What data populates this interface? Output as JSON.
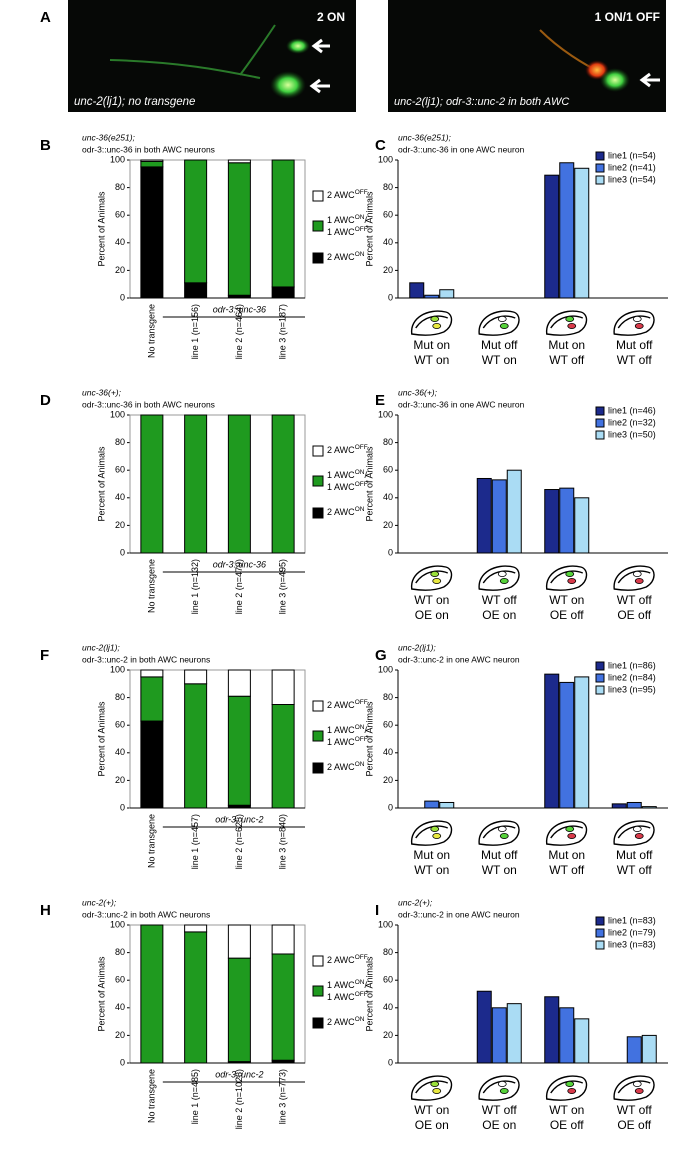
{
  "figure": {
    "panel_labels": [
      "A",
      "B",
      "C",
      "D",
      "E",
      "F",
      "G",
      "H",
      "I"
    ],
    "images": [
      {
        "label": "2 ON",
        "caption": "unc-2(lj1); no transgene"
      },
      {
        "label": "1 ON/1 OFF",
        "caption": "unc-2(lj1); odr-3::unc-2 in both AWC"
      }
    ]
  },
  "chart_data": [
    {
      "type": "stacked_bar",
      "title": [
        "unc-36(e251);",
        "odr-3::unc-36 in both AWC neurons"
      ],
      "y_label": "Percent of Animals",
      "categories": [
        "No transgene",
        "line 1 (n=156)",
        "line 2 (n=464)",
        "line 3 (n=187)"
      ],
      "group_label": "odr-3::unc-36",
      "ylim": [
        0,
        100
      ],
      "yticks": [
        0,
        20,
        40,
        60,
        80,
        100
      ],
      "series": [
        {
          "name": [
            [
              "2 AWC",
              "ON"
            ]
          ],
          "color": "#000000",
          "values": [
            95,
            11,
            2,
            8
          ]
        },
        {
          "name": [
            [
              "1 AWC",
              "ON",
              "/"
            ],
            [
              "1 AWC",
              "OFF"
            ]
          ],
          "color": "#1f9a1f",
          "values": [
            4,
            89,
            96,
            92
          ]
        },
        {
          "name": [
            [
              "2 AWC",
              "OFF"
            ]
          ],
          "color": "#ffffff",
          "values": [
            1,
            0,
            2,
            0
          ]
        }
      ]
    },
    {
      "type": "bar",
      "title": [
        "unc-36(e251);",
        "odr-3::unc-36 in one AWC neuron"
      ],
      "y_label": "Percent of Animals",
      "categories": [
        [
          "Mut on",
          "WT on"
        ],
        [
          "Mut off",
          "WT on"
        ],
        [
          "Mut on",
          "WT off"
        ],
        [
          "Mut off",
          "WT off"
        ]
      ],
      "ylim": [
        0,
        100
      ],
      "yticks": [
        0,
        20,
        40,
        60,
        80,
        100
      ],
      "legend": "upper right",
      "series": [
        {
          "name": "line1 (n=54)",
          "color": "#1c2a8c",
          "values": [
            11,
            0,
            89,
            0
          ]
        },
        {
          "name": "line2 (n=41)",
          "color": "#4272e0",
          "values": [
            2,
            0,
            98,
            0
          ]
        },
        {
          "name": "line3 (n=54)",
          "color": "#aadcf4",
          "values": [
            6,
            0,
            94,
            0
          ]
        }
      ]
    },
    {
      "type": "stacked_bar",
      "title": [
        "unc-36(+);",
        "odr-3::unc-36 in both AWC neurons"
      ],
      "y_label": "Percent of Animals",
      "categories": [
        "No transgene",
        "line 1 (n=132)",
        "line 2 (n=479)",
        "line 3 (n=495)"
      ],
      "group_label": "odr-3::unc-36",
      "ylim": [
        0,
        100
      ],
      "yticks": [
        0,
        20,
        40,
        60,
        80,
        100
      ],
      "series": [
        {
          "name": [
            [
              "2 AWC",
              "ON"
            ]
          ],
          "color": "#000000",
          "values": [
            0,
            0,
            0,
            0
          ]
        },
        {
          "name": [
            [
              "1 AWC",
              "ON",
              "/"
            ],
            [
              "1 AWC",
              "OFF"
            ]
          ],
          "color": "#1f9a1f",
          "values": [
            100,
            100,
            100,
            100
          ]
        },
        {
          "name": [
            [
              "2 AWC",
              "OFF"
            ]
          ],
          "color": "#ffffff",
          "values": [
            0,
            0,
            0,
            0
          ]
        }
      ]
    },
    {
      "type": "bar",
      "title": [
        "unc-36(+);",
        "odr-3::unc-36 in one AWC neuron"
      ],
      "y_label": "Percent of Animals",
      "categories": [
        [
          "WT on",
          "OE on"
        ],
        [
          "WT off",
          "OE on"
        ],
        [
          "WT on",
          "OE off"
        ],
        [
          "WT off",
          "OE off"
        ]
      ],
      "ylim": [
        0,
        100
      ],
      "yticks": [
        0,
        20,
        40,
        60,
        80,
        100
      ],
      "legend": "upper right",
      "series": [
        {
          "name": "line1 (n=46)",
          "color": "#1c2a8c",
          "values": [
            0,
            54,
            46,
            0
          ]
        },
        {
          "name": "line2 (n=32)",
          "color": "#4272e0",
          "values": [
            0,
            53,
            47,
            0
          ]
        },
        {
          "name": "line3 (n=50)",
          "color": "#aadcf4",
          "values": [
            0,
            60,
            40,
            0
          ]
        }
      ]
    },
    {
      "type": "stacked_bar",
      "title": [
        "unc-2(lj1);",
        "odr-3::unc-2 in both AWC neurons"
      ],
      "y_label": "Percent of Animals",
      "categories": [
        "No transgene",
        "line 1 (n=457)",
        "line 2 (n=625)",
        "line 3 (n=840)"
      ],
      "group_label": "odr-3::unc-2",
      "ylim": [
        0,
        100
      ],
      "yticks": [
        0,
        20,
        40,
        60,
        80,
        100
      ],
      "series": [
        {
          "name": [
            [
              "2 AWC",
              "ON"
            ]
          ],
          "color": "#000000",
          "values": [
            63,
            0,
            2,
            0
          ]
        },
        {
          "name": [
            [
              "1 AWC",
              "ON",
              "/"
            ],
            [
              "1 AWC",
              "OFF"
            ]
          ],
          "color": "#1f9a1f",
          "values": [
            32,
            90,
            79,
            75
          ]
        },
        {
          "name": [
            [
              "2 AWC",
              "OFF"
            ]
          ],
          "color": "#ffffff",
          "values": [
            5,
            10,
            19,
            25
          ]
        }
      ]
    },
    {
      "type": "bar",
      "title": [
        "unc-2(lj1);",
        "odr-3::unc-2 in one AWC neuron"
      ],
      "y_label": "Percent of Animals",
      "categories": [
        [
          "Mut on",
          "WT on"
        ],
        [
          "Mut off",
          "WT on"
        ],
        [
          "Mut on",
          "WT off"
        ],
        [
          "Mut off",
          "WT off"
        ]
      ],
      "ylim": [
        0,
        100
      ],
      "yticks": [
        0,
        20,
        40,
        60,
        80,
        100
      ],
      "legend": "upper right",
      "series": [
        {
          "name": "line1 (n=86)",
          "color": "#1c2a8c",
          "values": [
            0,
            0,
            97,
            3
          ]
        },
        {
          "name": "line2 (n=84)",
          "color": "#4272e0",
          "values": [
            5,
            0,
            91,
            4
          ]
        },
        {
          "name": "line3 (n=95)",
          "color": "#aadcf4",
          "values": [
            4,
            0,
            95,
            1
          ]
        }
      ]
    },
    {
      "type": "stacked_bar",
      "title": [
        "unc-2(+);",
        "odr-3::unc-2 in both AWC neurons"
      ],
      "y_label": "Percent of Animals",
      "categories": [
        "No transgene",
        "line 1 (n=485)",
        "line 2 (n=1026)",
        "line 3 (n=773)"
      ],
      "group_label": "odr-3::unc-2",
      "ylim": [
        0,
        100
      ],
      "yticks": [
        0,
        20,
        40,
        60,
        80,
        100
      ],
      "series": [
        {
          "name": [
            [
              "2 AWC",
              "ON"
            ]
          ],
          "color": "#000000",
          "values": [
            0,
            0,
            1,
            2
          ]
        },
        {
          "name": [
            [
              "1 AWC",
              "ON",
              "/"
            ],
            [
              "1 AWC",
              "OFF"
            ]
          ],
          "color": "#1f9a1f",
          "values": [
            100,
            95,
            75,
            77
          ]
        },
        {
          "name": [
            [
              "2 AWC",
              "OFF"
            ]
          ],
          "color": "#ffffff",
          "values": [
            0,
            5,
            24,
            21
          ]
        }
      ]
    },
    {
      "type": "bar",
      "title": [
        "unc-2(+);",
        "odr-3::unc-2 in one AWC neuron"
      ],
      "y_label": "Percent of Animals",
      "categories": [
        [
          "WT on",
          "OE on"
        ],
        [
          "WT off",
          "OE on"
        ],
        [
          "WT on",
          "OE off"
        ],
        [
          "WT off",
          "OE off"
        ]
      ],
      "ylim": [
        0,
        100
      ],
      "yticks": [
        0,
        20,
        40,
        60,
        80,
        100
      ],
      "legend": "upper right",
      "series": [
        {
          "name": "line1 (n=83)",
          "color": "#1c2a8c",
          "values": [
            0,
            52,
            48,
            0
          ]
        },
        {
          "name": "line2 (n=79)",
          "color": "#4272e0",
          "values": [
            0,
            40,
            40,
            19
          ]
        },
        {
          "name": "line3 (n=83)",
          "color": "#aadcf4",
          "values": [
            0,
            43,
            32,
            20
          ]
        }
      ]
    }
  ]
}
